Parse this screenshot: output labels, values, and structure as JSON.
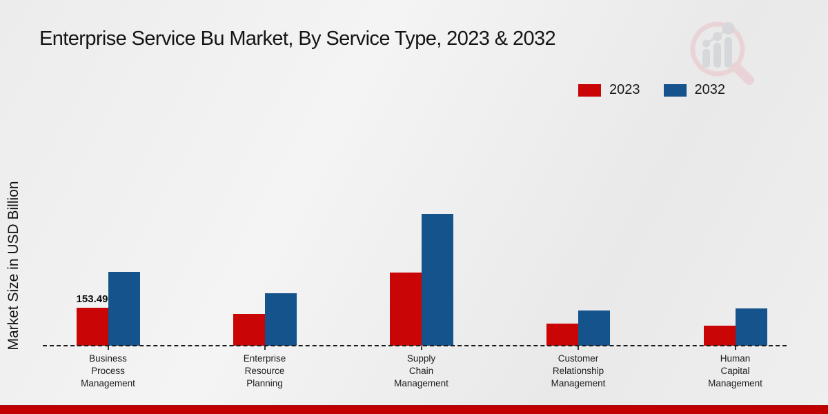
{
  "chart_data": {
    "type": "bar",
    "title": "Enterprise Service Bu Market, By Service Type, 2023 & 2032",
    "xlabel": "",
    "ylabel": "Market Size in USD Billion",
    "categories": [
      "Business Process Management",
      "Enterprise Resource Planning",
      "Supply Chain Management",
      "Customer Relationship Management",
      "Human Capital Management"
    ],
    "series": [
      {
        "name": "2023",
        "color": "#c90506",
        "values": [
          153.49,
          128,
          296,
          89,
          81
        ]
      },
      {
        "name": "2032",
        "color": "#14538c",
        "values": [
          300,
          212,
          533,
          142,
          151
        ]
      }
    ],
    "bar_labels": [
      {
        "series": "2023",
        "category": "Business Process Management",
        "text": "153.49"
      }
    ],
    "ylim": [
      0,
      620
    ],
    "axis": {
      "baseline_style": "dashed",
      "gridlines": false,
      "y_ticks_visible": false
    },
    "legend_position": "top-right",
    "accent_colors": {
      "footer_bar": "#c00000",
      "watermark_ring": "#e9c2c6",
      "watermark_bars": "#c7cacf"
    }
  }
}
